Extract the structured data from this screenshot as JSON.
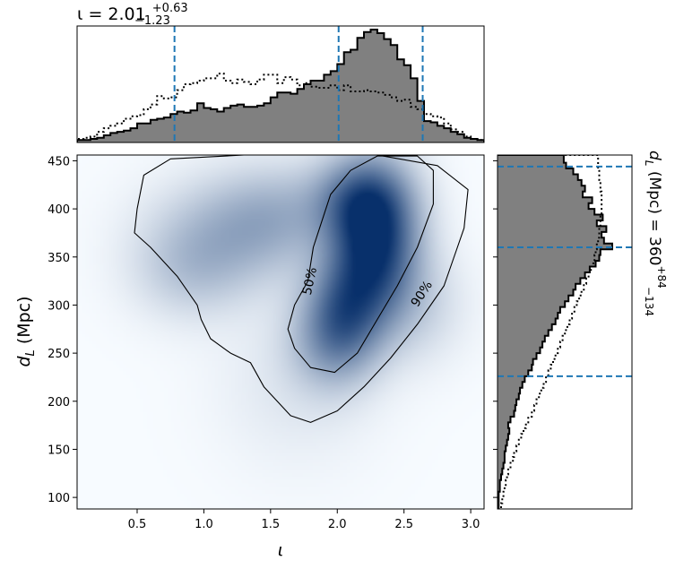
{
  "chart_data": {
    "type": "corner-posterior",
    "top_title": {
      "param": "ι = 2.01",
      "plus": "+0.63",
      "minus": "−1.23"
    },
    "side_title": {
      "param": "d",
      "sub": "L",
      "rest": " (Mpc) = 360",
      "plus": "+84",
      "minus": "−134"
    },
    "xlabel": {
      "symbol": "ι"
    },
    "ylabel": {
      "symbol": "d",
      "sub": "L",
      "unit": " (Mpc)"
    },
    "xlim": [
      0.05,
      3.1
    ],
    "ylim": [
      88,
      456
    ],
    "x_ticks": [
      0.5,
      1.0,
      1.5,
      2.0,
      2.5,
      3.0
    ],
    "x_tick_labels": [
      "0.5",
      "1.0",
      "1.5",
      "2.0",
      "2.5",
      "3.0"
    ],
    "y_ticks": [
      100,
      150,
      200,
      250,
      300,
      350,
      400,
      450
    ],
    "y_tick_labels": [
      "100",
      "150",
      "200",
      "250",
      "300",
      "350",
      "400",
      "450"
    ],
    "contour_labels": [
      {
        "text": "50%",
        "x": 1.79,
        "y": 325,
        "rotation": -78
      },
      {
        "text": "90%",
        "x": 2.63,
        "y": 312,
        "rotation": -57
      }
    ],
    "iota_quantiles": [
      0.78,
      2.01,
      2.64
    ],
    "dl_quantiles": [
      226,
      360,
      444
    ],
    "iota_bins": [
      0.05,
      0.1,
      0.15,
      0.2,
      0.25,
      0.3,
      0.35,
      0.4,
      0.45,
      0.5,
      0.55,
      0.6,
      0.65,
      0.7,
      0.75,
      0.8,
      0.85,
      0.9,
      0.95,
      1.0,
      1.05,
      1.1,
      1.15,
      1.2,
      1.25,
      1.3,
      1.35,
      1.4,
      1.45,
      1.5,
      1.55,
      1.6,
      1.65,
      1.7,
      1.75,
      1.8,
      1.85,
      1.9,
      1.95,
      2.0,
      2.05,
      2.1,
      2.15,
      2.2,
      2.25,
      2.3,
      2.35,
      2.4,
      2.45,
      2.5,
      2.55,
      2.6,
      2.65,
      2.7,
      2.75,
      2.8,
      2.85,
      2.9,
      2.95,
      3.0,
      3.05,
      3.1
    ],
    "iota_hist_posterior": [
      2,
      2,
      3,
      4,
      6,
      8,
      9,
      10,
      12,
      16,
      16,
      19,
      20,
      21,
      24,
      26,
      25,
      27,
      33,
      29,
      28,
      26,
      29,
      31,
      32,
      30,
      30,
      31,
      33,
      38,
      42,
      42,
      41,
      45,
      49,
      52,
      52,
      57,
      60,
      66,
      76,
      78,
      88,
      93,
      95,
      92,
      87,
      82,
      70,
      65,
      54,
      35,
      18,
      17,
      14,
      12,
      9,
      7,
      4,
      3,
      2
    ],
    "iota_hist_prior": [
      3,
      4,
      5,
      9,
      12,
      14,
      16,
      20,
      22,
      23,
      28,
      32,
      39,
      37,
      38,
      44,
      49,
      50,
      52,
      54,
      54,
      58,
      52,
      50,
      53,
      51,
      49,
      53,
      57,
      57,
      50,
      55,
      53,
      48,
      50,
      47,
      46,
      46,
      48,
      44,
      48,
      43,
      43,
      44,
      43,
      42,
      40,
      38,
      35,
      36,
      30,
      28,
      24,
      22,
      21,
      16,
      11,
      9,
      5,
      3,
      2
    ],
    "dl_bins": [
      88,
      94,
      100,
      106,
      112,
      118,
      124,
      130,
      136,
      142,
      148,
      154,
      160,
      166,
      172,
      178,
      184,
      190,
      196,
      202,
      208,
      214,
      220,
      226,
      232,
      238,
      244,
      250,
      256,
      262,
      268,
      274,
      280,
      286,
      292,
      298,
      304,
      310,
      316,
      322,
      328,
      334,
      340,
      346,
      352,
      358,
      364,
      370,
      376,
      382,
      388,
      394,
      400,
      406,
      412,
      418,
      424,
      430,
      436,
      442,
      448,
      456
    ],
    "dl_hist_posterior": [
      1,
      1,
      1,
      2,
      2,
      3,
      4,
      5,
      6,
      6,
      7,
      8,
      9,
      10,
      9,
      11,
      14,
      15,
      16,
      18,
      19,
      21,
      23,
      26,
      29,
      30,
      33,
      36,
      38,
      40,
      43,
      46,
      49,
      51,
      53,
      57,
      60,
      64,
      66,
      70,
      74,
      78,
      83,
      86,
      87,
      97,
      90,
      88,
      92,
      84,
      89,
      82,
      77,
      80,
      72,
      74,
      71,
      68,
      64,
      58,
      56
    ],
    "dl_hist_prior": [
      3,
      4,
      5,
      6,
      7,
      8,
      9,
      11,
      13,
      14,
      16,
      18,
      20,
      22,
      24,
      26,
      29,
      31,
      33,
      35,
      37,
      39,
      41,
      43,
      45,
      47,
      49,
      51,
      53,
      55,
      57,
      59,
      61,
      63,
      65,
      67,
      69,
      71,
      73,
      75,
      77,
      79,
      81,
      82,
      83,
      84,
      85,
      86,
      86,
      87,
      87,
      88,
      88,
      88,
      88,
      87,
      87,
      86,
      86,
      85,
      85
    ],
    "kde_peaks": [
      {
        "x": 2.28,
        "y": 365,
        "sx": 0.22,
        "sy": 52,
        "w": 1.0
      },
      {
        "x": 2.05,
        "y": 295,
        "sx": 0.2,
        "sy": 38,
        "w": 0.55
      },
      {
        "x": 2.15,
        "y": 410,
        "sx": 0.25,
        "sy": 30,
        "w": 0.45
      },
      {
        "x": 1.95,
        "y": 260,
        "sx": 0.22,
        "sy": 35,
        "w": 0.28
      },
      {
        "x": 1.2,
        "y": 375,
        "sx": 0.4,
        "sy": 40,
        "w": 0.28
      },
      {
        "x": 0.9,
        "y": 335,
        "sx": 0.3,
        "sy": 35,
        "w": 0.18
      },
      {
        "x": 1.55,
        "y": 395,
        "sx": 0.3,
        "sy": 35,
        "w": 0.2
      },
      {
        "x": 2.6,
        "y": 300,
        "sx": 0.25,
        "sy": 40,
        "w": 0.15
      },
      {
        "x": 1.7,
        "y": 220,
        "sx": 0.4,
        "sy": 60,
        "w": 0.08
      }
    ],
    "contour_90": [
      [
        0.5,
        400
      ],
      [
        0.55,
        435
      ],
      [
        0.75,
        452
      ],
      [
        1.3,
        456
      ],
      [
        1.8,
        456
      ],
      [
        2.3,
        456
      ],
      [
        2.75,
        445
      ],
      [
        2.98,
        420
      ],
      [
        2.95,
        380
      ],
      [
        2.8,
        320
      ],
      [
        2.6,
        280
      ],
      [
        2.4,
        245
      ],
      [
        2.2,
        215
      ],
      [
        2.0,
        190
      ],
      [
        1.8,
        178
      ],
      [
        1.65,
        185
      ],
      [
        1.45,
        215
      ],
      [
        1.35,
        240
      ],
      [
        1.2,
        250
      ],
      [
        1.05,
        265
      ],
      [
        0.98,
        285
      ],
      [
        0.95,
        300
      ],
      [
        0.8,
        330
      ],
      [
        0.6,
        360
      ],
      [
        0.48,
        375
      ],
      [
        0.5,
        400
      ]
    ],
    "contour_50": [
      [
        1.82,
        360
      ],
      [
        1.95,
        415
      ],
      [
        2.1,
        440
      ],
      [
        2.3,
        455
      ],
      [
        2.6,
        455
      ],
      [
        2.72,
        440
      ],
      [
        2.72,
        405
      ],
      [
        2.6,
        360
      ],
      [
        2.45,
        320
      ],
      [
        2.3,
        285
      ],
      [
        2.15,
        250
      ],
      [
        1.98,
        230
      ],
      [
        1.8,
        235
      ],
      [
        1.68,
        255
      ],
      [
        1.63,
        275
      ],
      [
        1.68,
        300
      ],
      [
        1.78,
        325
      ],
      [
        1.82,
        360
      ]
    ],
    "series": [
      {
        "name": "",
        "style": "filled-grey-step"
      },
      {
        "name": "",
        "style": "dotted-step"
      }
    ],
    "grid": false,
    "colors": {
      "hist_fill": "#808080",
      "quantile": "#1f77b4",
      "kde_colormap": "Blues",
      "contour": "#000000"
    }
  }
}
